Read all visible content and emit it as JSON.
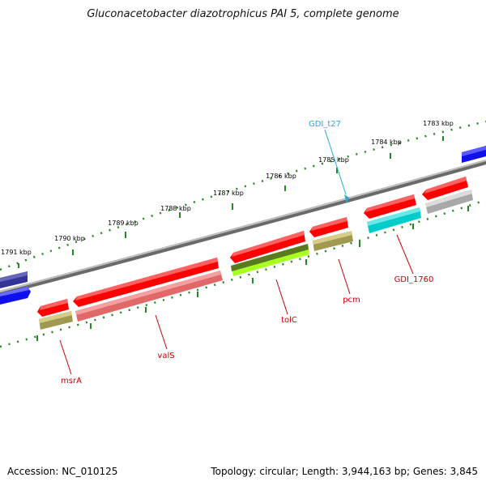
{
  "title": "Gluconacetobacter diazotrophicus PAI 5, complete genome",
  "footer": {
    "accession": "Accession: NC_010125",
    "topology": "Topology: circular; Length: 3,944,163 bp; Genes: 3,845"
  },
  "ticks": [
    "1783 kbp",
    "1784 kbp",
    "1785 kbp",
    "1786 kbp",
    "1787 kbp",
    "1788 kbp",
    "1789 kbp",
    "1790 kbp",
    "1791 kbp"
  ],
  "gene_labels": [
    "GDI_t27",
    "GDI_1760",
    "pcm",
    "tolC",
    "valS",
    "msrA"
  ],
  "colors": {
    "red": "#ff0000",
    "label_red": "#cc0000",
    "label_cyan": "#22aadd",
    "cyan": "#00cccc",
    "khaki": "#b8b070",
    "olive": "#5a7a20",
    "lime": "#b0ff20",
    "pink": "#f08080",
    "gray": "#b0b0b0",
    "blue": "#1010ee",
    "navy": "#333399",
    "tick_green": "#228822",
    "backbone": "#808080"
  }
}
